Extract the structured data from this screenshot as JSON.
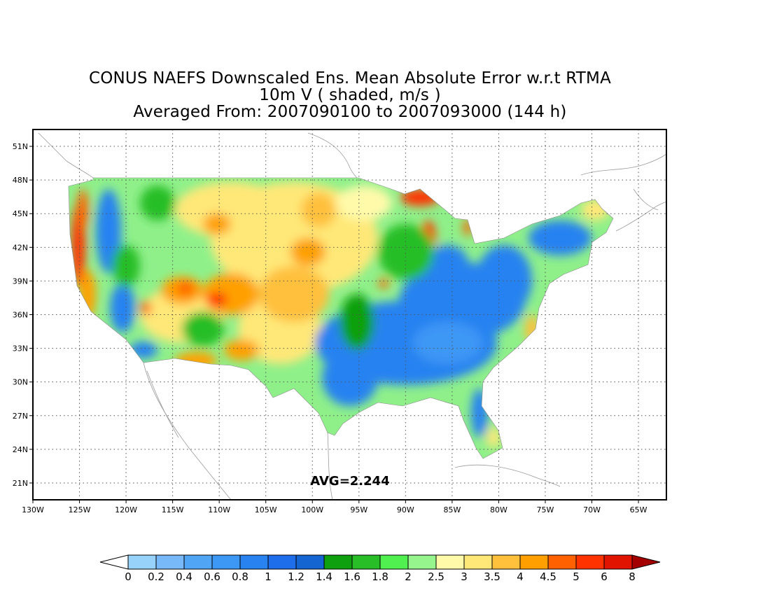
{
  "title": {
    "line1": "CONUS NAEFS Downscaled Ens. Mean Absolute Error w.r.t RTMA",
    "line2": "10m V ( shaded, m/s )",
    "line3": "Averaged From: 2007090100 to 2007093000 (144 h)"
  },
  "map": {
    "lon_range": [
      -130,
      -62
    ],
    "lat_range": [
      19.5,
      52.5
    ],
    "lon_ticks": [
      "130W",
      "125W",
      "120W",
      "115W",
      "110W",
      "105W",
      "100W",
      "95W",
      "90W",
      "85W",
      "80W",
      "75W",
      "70W",
      "65W"
    ],
    "lon_values": [
      -130,
      -125,
      -120,
      -115,
      -110,
      -105,
      -100,
      -95,
      -90,
      -85,
      -80,
      -75,
      -70,
      -65
    ],
    "lat_ticks": [
      "21N",
      "24N",
      "27N",
      "30N",
      "33N",
      "36N",
      "39N",
      "42N",
      "45N",
      "48N",
      "51N"
    ],
    "lat_values": [
      21,
      24,
      27,
      30,
      33,
      36,
      39,
      42,
      45,
      48,
      51
    ],
    "avg_label": "AVG=2.244",
    "grid": "dotted"
  },
  "colorbar": {
    "labels": [
      "0",
      "0.2",
      "0.4",
      "0.6",
      "0.8",
      "1",
      "1.2",
      "1.4",
      "1.6",
      "1.8",
      "2",
      "2.5",
      "3",
      "3.5",
      "4",
      "4.5",
      "5",
      "6",
      "8"
    ],
    "colors": [
      "#96d2fa",
      "#78b9fa",
      "#50a5f5",
      "#3c97f5",
      "#2882f0",
      "#1e6eeb",
      "#1464d2",
      "#0fa00f",
      "#28be28",
      "#50f050",
      "#96f58c",
      "#fffaaa",
      "#ffe878",
      "#ffc03c",
      "#ffa000",
      "#ff6000",
      "#ff3200",
      "#e11400",
      "#a50000"
    ],
    "under_color": "#ffffff",
    "over_color": "#a50000"
  }
}
